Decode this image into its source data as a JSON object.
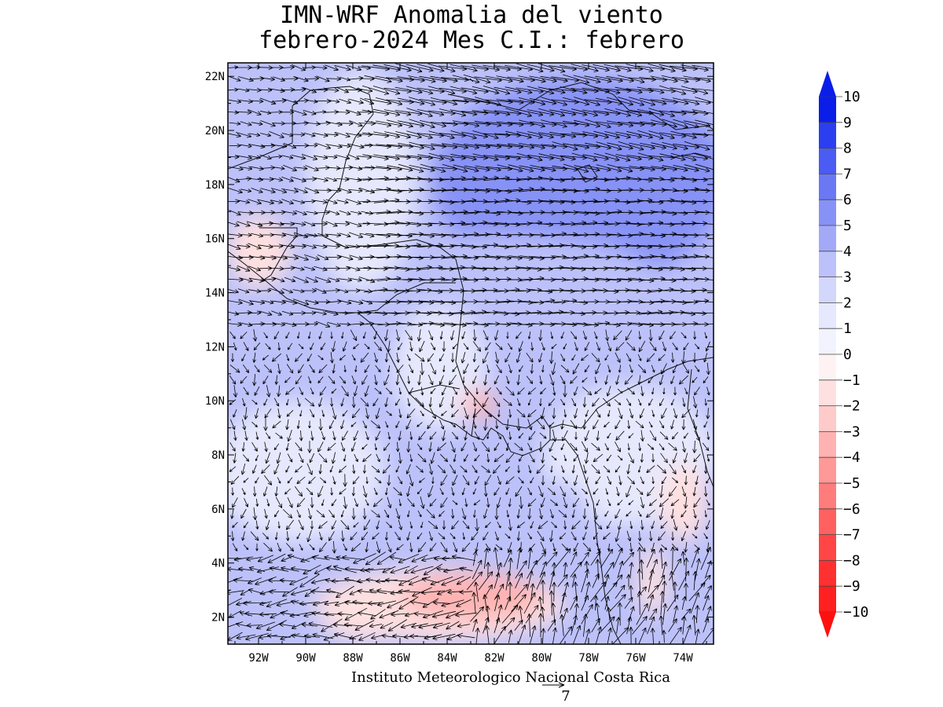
{
  "title": {
    "line1": "IMN-WRF Anomalia del viento",
    "line2": "febrero-2024 Mes C.I.: febrero"
  },
  "credit": "Instituto Meteorologico Nacional Costa Rica",
  "reference_vector": {
    "label": "7",
    "magnitude": 7
  },
  "axes": {
    "lon_ticks": [
      "92W",
      "90W",
      "88W",
      "86W",
      "84W",
      "82W",
      "80W",
      "78W",
      "76W",
      "74W"
    ],
    "lat_ticks": [
      "22N",
      "20N",
      "18N",
      "16N",
      "14N",
      "12N",
      "10N",
      "8N",
      "6N",
      "4N",
      "2N"
    ],
    "lon_range": [
      -93.3,
      -72.7
    ],
    "lat_range": [
      1.0,
      22.5
    ]
  },
  "colorbar": {
    "labels": [
      "10",
      "9",
      "8",
      "7",
      "6",
      "5",
      "4",
      "3",
      "2",
      "1",
      "0",
      "−1",
      "−2",
      "−3",
      "−4",
      "−5",
      "−6",
      "−7",
      "−8",
      "−9",
      "−10"
    ],
    "colors": [
      "#0a1ee8",
      "#2b3ff0",
      "#4a5cf2",
      "#6a78f4",
      "#8792f6",
      "#a2aaf8",
      "#bcc1fa",
      "#d3d7fc",
      "#e6e8fd",
      "#f2f3fe",
      "#fff2f2",
      "#ffe0e0",
      "#ffcaca",
      "#ffb2b2",
      "#ff9898",
      "#ff7c7c",
      "#ff6060",
      "#ff4646",
      "#ff3030",
      "#ff2020"
    ],
    "over_color": "#0a1ee8",
    "under_color": "#ff1010"
  },
  "field_regions": {
    "strong_positive": "#8792f6",
    "positive": "#bcc1fa",
    "weak_positive": "#e6e8fd",
    "weak_negative": "#ffe0e0",
    "negative": "#ffb2b2"
  }
}
